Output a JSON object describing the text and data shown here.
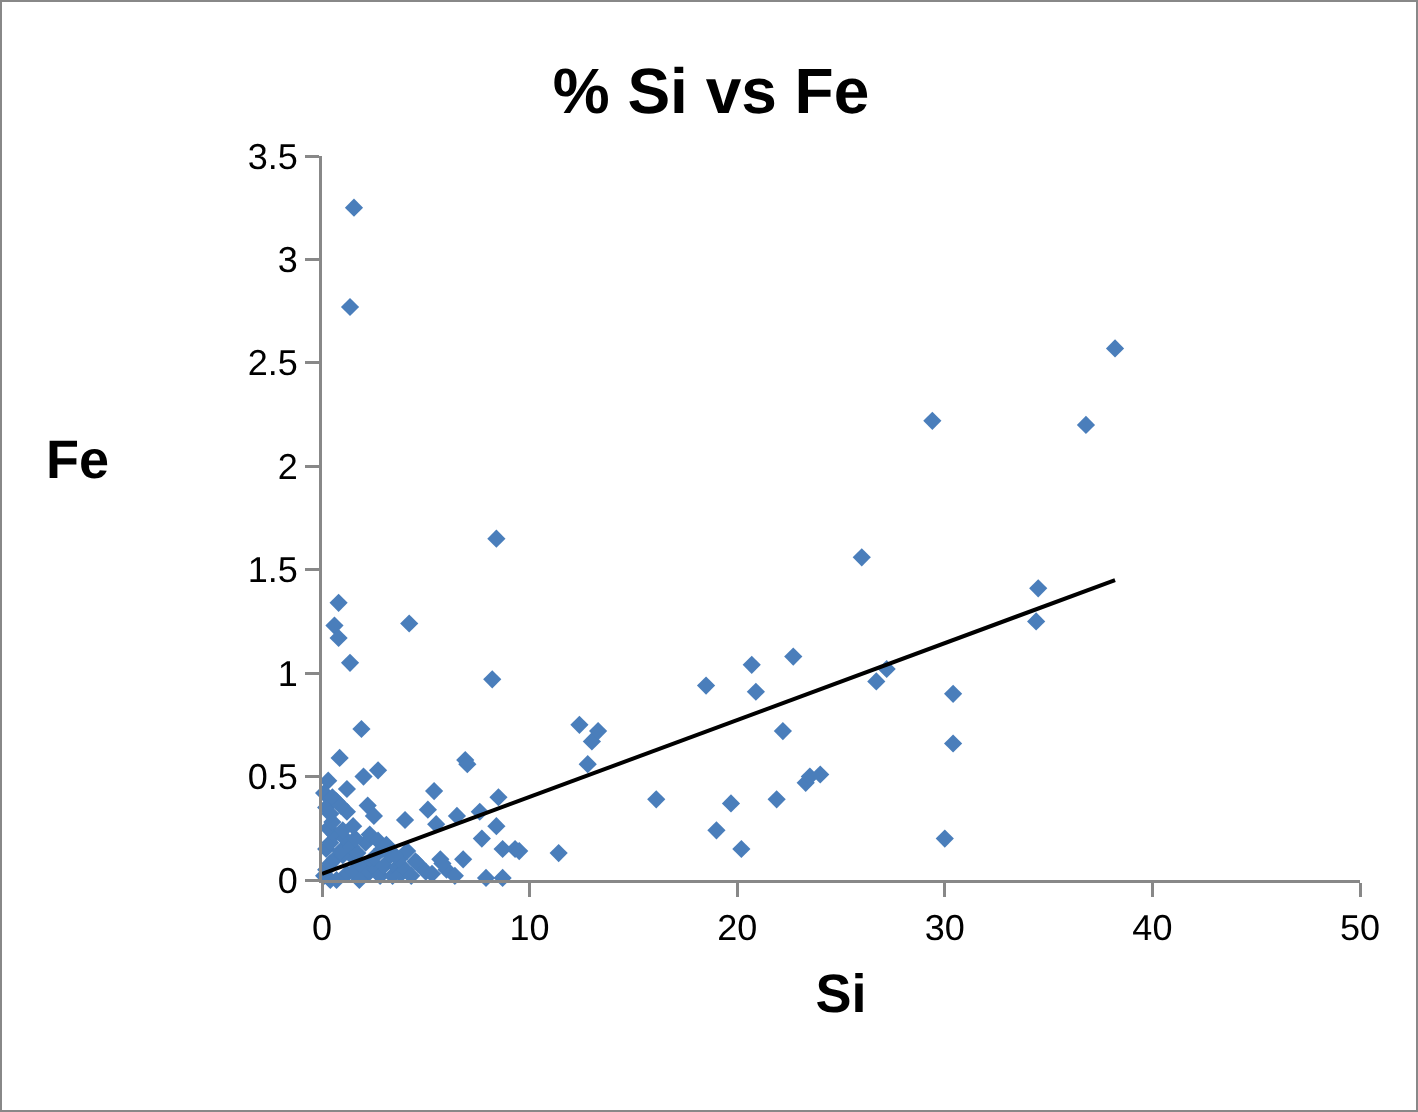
{
  "chart_data": {
    "type": "scatter",
    "title": "% Si vs Fe",
    "xlabel": "Si",
    "ylabel": "Fe",
    "xlim": [
      0,
      50
    ],
    "xticks": [
      0,
      10,
      20,
      30,
      40,
      50
    ],
    "ylim": [
      0,
      3.5
    ],
    "yticks": [
      0,
      0.5,
      1,
      1.5,
      2,
      2.5,
      3,
      3.5
    ],
    "grid": false,
    "marker": "diamond",
    "series": [
      {
        "color": "#4a7ebb",
        "x": [
          1.54,
          1.35,
          8.4,
          4.2,
          0.8,
          0.6,
          0.8,
          1.35,
          1.9,
          8.2,
          0.85,
          2.0,
          2.7,
          6.9,
          7.0,
          0.3,
          1.2,
          5.4,
          5.1,
          8.5,
          7.6,
          8.4,
          6.5,
          5.5,
          4.0,
          2.2,
          2.5,
          9.3,
          7.7,
          8.7,
          11.4,
          7.9,
          8.7,
          12.4,
          13.0,
          13.3,
          12.8,
          16.1,
          18.5,
          19.0,
          19.7,
          20.2,
          20.7,
          20.9,
          21.9,
          22.2,
          22.7,
          23.3,
          23.5,
          24.0,
          26.0,
          26.7,
          27.2,
          30.0,
          30.4,
          30.4,
          34.4,
          34.5,
          29.4,
          36.8,
          38.2,
          0.1,
          0.2,
          0.4,
          0.6,
          1.0,
          1.2,
          1.5,
          1.6,
          2.0,
          2.2,
          2.4,
          2.6,
          2.8,
          3.0,
          3.4,
          3.6,
          3.8,
          4.0,
          4.3,
          4.6,
          5.0,
          5.3,
          5.7,
          6.0,
          6.4,
          0.2,
          0.4,
          0.6,
          0.9,
          1.1,
          1.4,
          1.7,
          2.1,
          2.5,
          2.9,
          3.3,
          3.7,
          4.1,
          4.5,
          0.3,
          0.5,
          1.0,
          1.6,
          2.3,
          2.7,
          3.1,
          3.5,
          0.2,
          0.4,
          0.7,
          1.2,
          1.5,
          0.1,
          0.5,
          0.9,
          0.4,
          0.7,
          1.8,
          9.5,
          6.8,
          5.8
        ],
        "values": [
          3.25,
          2.77,
          1.65,
          1.24,
          1.34,
          1.23,
          1.17,
          1.05,
          0.73,
          0.97,
          0.59,
          0.5,
          0.53,
          0.58,
          0.56,
          0.48,
          0.44,
          0.43,
          0.34,
          0.4,
          0.33,
          0.26,
          0.31,
          0.27,
          0.29,
          0.36,
          0.31,
          0.15,
          0.2,
          0.15,
          0.13,
          0.01,
          0.01,
          0.75,
          0.67,
          0.72,
          0.56,
          0.39,
          0.94,
          0.24,
          0.37,
          0.15,
          1.04,
          0.91,
          0.39,
          0.72,
          1.08,
          0.47,
          0.5,
          0.51,
          1.56,
          0.96,
          1.02,
          0.2,
          0.9,
          0.66,
          1.25,
          1.41,
          2.22,
          2.2,
          2.57,
          0.02,
          0.05,
          0.08,
          0.1,
          0.12,
          0.03,
          0.04,
          0.1,
          0.06,
          0.03,
          0.09,
          0.05,
          0.02,
          0.07,
          0.02,
          0.06,
          0.03,
          0.05,
          0.02,
          0.08,
          0.04,
          0.03,
          0.1,
          0.05,
          0.02,
          0.15,
          0.18,
          0.22,
          0.14,
          0.2,
          0.16,
          0.13,
          0.18,
          0.11,
          0.15,
          0.12,
          0.1,
          0.14,
          0.09,
          0.25,
          0.28,
          0.24,
          0.2,
          0.22,
          0.19,
          0.17,
          0.12,
          0.35,
          0.32,
          0.38,
          0.33,
          0.26,
          0.42,
          0.4,
          0.36,
          0.0,
          0.0,
          0.0,
          0.14,
          0.1,
          0.08
        ]
      },
      {
        "type": "line",
        "color": "#000000",
        "marker": "none",
        "x": [
          0,
          38.2
        ],
        "values": [
          0.03,
          1.45
        ]
      }
    ]
  }
}
